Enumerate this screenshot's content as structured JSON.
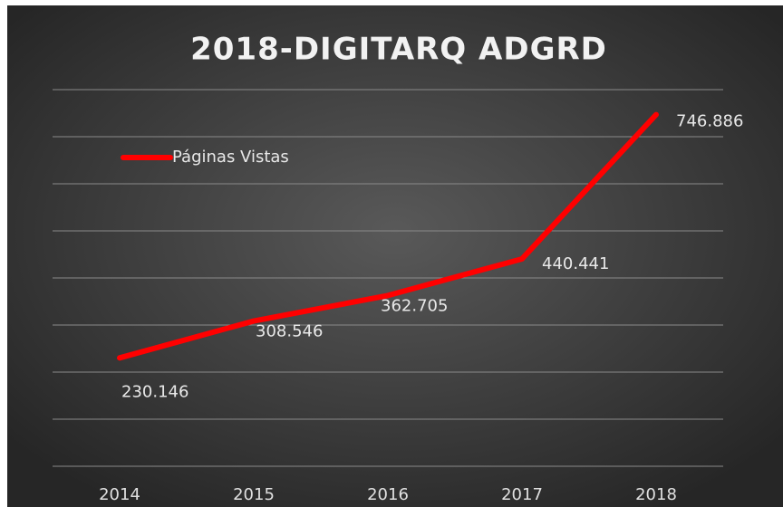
{
  "chart_data": {
    "type": "line",
    "title": "2018-DIGITARQ ADGRD",
    "categories": [
      "2014",
      "2015",
      "2016",
      "2017",
      "2018"
    ],
    "series": [
      {
        "name": "Páginas Vistas",
        "color": "#ff0000",
        "values": [
          230146,
          308546,
          362705,
          440441,
          746886
        ],
        "value_labels": [
          "230.146",
          "308.546",
          "362.705",
          "440.441",
          "746.886"
        ]
      }
    ],
    "ylim": [
      0,
      800000
    ],
    "yticks": [
      0,
      100000,
      200000,
      300000,
      400000,
      500000,
      600000,
      700000,
      800000
    ],
    "grid": true,
    "legend": "top-left"
  }
}
